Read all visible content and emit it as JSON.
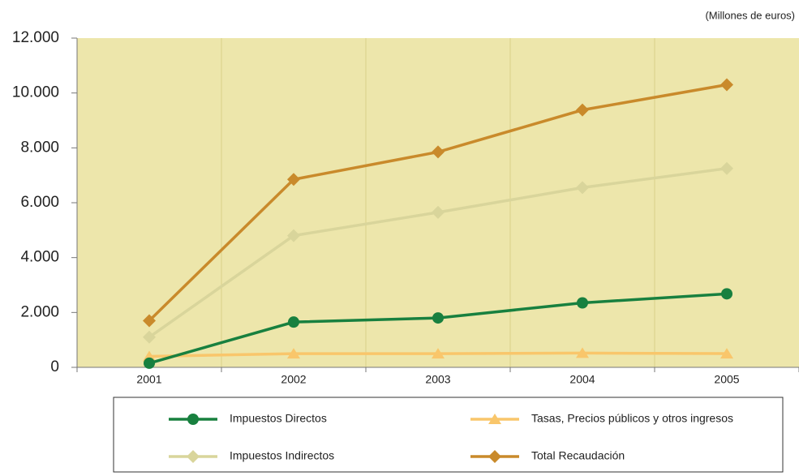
{
  "chart_data": {
    "type": "line",
    "unit_note": "(Millones de euros)",
    "categories": [
      "2001",
      "2002",
      "2003",
      "2004",
      "2005"
    ],
    "series": [
      {
        "name": "Impuestos Directos",
        "color": "#18803f",
        "marker": "circle",
        "values": [
          150,
          1650,
          1800,
          2350,
          2680
        ]
      },
      {
        "name": "Tasas, Precios públicos y otros ingresos",
        "color": "#f9c66b",
        "marker": "triangle",
        "values": [
          400,
          500,
          500,
          520,
          500
        ]
      },
      {
        "name": "Impuestos Indirectos",
        "color": "#d9d59b",
        "marker": "diamond",
        "values": [
          1100,
          4800,
          5650,
          6550,
          7250
        ]
      },
      {
        "name": "Total Recaudación",
        "color": "#c98a2b",
        "marker": "diamond",
        "values": [
          1700,
          6850,
          7850,
          9380,
          10300
        ]
      }
    ],
    "ylim": [
      0,
      12000
    ],
    "yticks": [
      0,
      {
        "value": 2000,
        "label": "2.000"
      },
      {
        "value": 4000,
        "label": "4.000"
      },
      {
        "value": 6000,
        "label": "6.000"
      },
      {
        "value": 8000,
        "label": "8.000"
      },
      {
        "value": 10000,
        "label": "10.000"
      },
      {
        "value": 12000,
        "label": "12.000"
      }
    ],
    "plot_background": "#ede6ab"
  }
}
